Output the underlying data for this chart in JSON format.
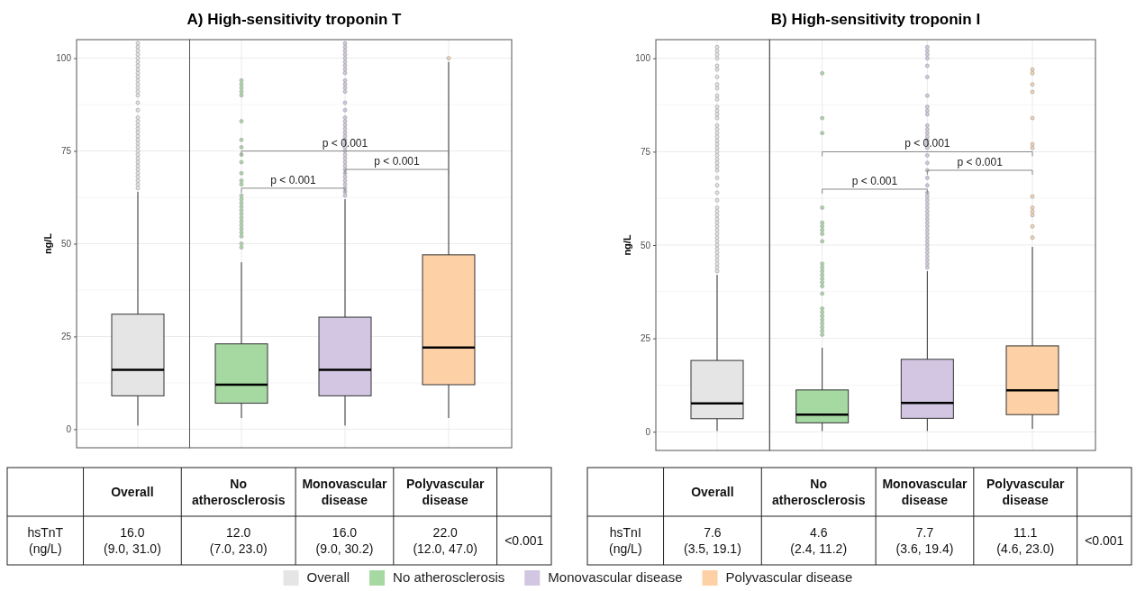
{
  "chart_data": [
    {
      "type": "box",
      "title": "A) High-sensitivity troponin T",
      "ylabel": "ng/L",
      "categories": [
        null,
        null,
        null,
        null
      ],
      "series": [
        {
          "name": "Overall",
          "color": "#e5e5e5",
          "value_labels": [
            "16.0 (9.0, 31.0)",
            null,
            null,
            null
          ],
          "boxes": [
            {
              "low": 1,
              "q1": 9,
              "median": 16,
              "q3": 31,
              "high": 64,
              "outliers": [
                65,
                66,
                67,
                68,
                69,
                70,
                71,
                72,
                73,
                74,
                75,
                76,
                77,
                78,
                79,
                80,
                81,
                82,
                83,
                84,
                86,
                88,
                90,
                91,
                92,
                93,
                94,
                95,
                96,
                97,
                98,
                99,
                100,
                101,
                102,
                103,
                104
              ]
            },
            null,
            null,
            null
          ]
        },
        {
          "name": "No atherosclerosis",
          "color": "#a6d9a2",
          "value_labels": [
            null,
            "12.0 (7.0, 23.0)",
            null,
            null
          ],
          "boxes": [
            null,
            {
              "low": 3,
              "q1": 7,
              "median": 12,
              "q3": 23,
              "high": 45,
              "outliers": [
                49,
                50,
                52,
                53,
                54,
                55,
                56,
                57,
                58,
                59,
                60,
                61,
                62,
                63,
                66,
                67,
                69,
                72,
                74,
                76,
                78,
                83,
                90,
                91,
                92,
                93,
                94
              ]
            },
            null,
            null
          ]
        },
        {
          "name": "Monovascular disease",
          "color": "#d2c6e2",
          "value_labels": [
            null,
            null,
            "16.0 (9.0, 30.2)",
            null
          ],
          "boxes": [
            null,
            null,
            {
              "low": 1,
              "q1": 9,
              "median": 16,
              "q3": 30.2,
              "high": 62,
              "outliers": [
                63,
                64,
                65,
                66,
                67,
                68,
                69,
                70,
                71,
                72,
                73,
                74,
                75,
                76,
                77,
                78,
                79,
                80,
                81,
                82,
                83,
                84,
                86,
                88,
                91,
                92,
                93,
                94,
                96,
                97,
                98,
                99,
                100,
                101,
                102,
                103,
                104
              ]
            },
            null
          ]
        },
        {
          "name": "Polyvascular disease",
          "color": "#fdd0a6",
          "value_labels": [
            null,
            null,
            null,
            "22.0 (12.0, 47.0)"
          ],
          "boxes": [
            null,
            null,
            null,
            {
              "low": 3,
              "q1": 12,
              "median": 22,
              "q3": 47,
              "high": 99,
              "outliers": [
                100
              ]
            }
          ]
        }
      ],
      "annotations": [
        "p < 0.001",
        "p < 0.001",
        "p < 0.001",
        "hsTnT (ng/L)",
        "<0.001"
      ],
      "ylim": [
        -5,
        105
      ],
      "yticks": [
        0,
        25,
        50,
        75,
        100
      ],
      "grid": true,
      "tick_labels": "y",
      "legend": "bottom"
    },
    {
      "type": "box",
      "title": "B) High-sensitivity troponin I",
      "ylabel": "ng/L",
      "categories": [
        null,
        null,
        null,
        null
      ],
      "series": [
        {
          "color": "#e5e5e5",
          "value_labels": [
            "7.6 (3.5, 19.1)",
            null,
            null,
            null
          ],
          "boxes": [
            {
              "low": 0.2,
              "q1": 3.5,
              "median": 7.6,
              "q3": 19.1,
              "high": 42,
              "outliers": [
                43,
                44,
                45,
                46,
                47,
                48,
                49,
                50,
                51,
                52,
                53,
                54,
                55,
                56,
                57,
                58,
                59,
                60,
                62,
                64,
                66,
                68,
                70,
                71,
                72,
                73,
                74,
                75,
                76,
                77,
                78,
                79,
                80,
                81,
                82,
                84,
                85,
                86,
                87,
                89,
                90,
                92,
                93,
                95,
                97,
                98,
                100,
                101,
                102,
                103
              ]
            },
            null,
            null,
            null
          ]
        },
        {
          "color": "#a6d9a2",
          "value_labels": [
            null,
            "4.6 (2.4, 11.2)",
            null,
            null
          ],
          "boxes": [
            null,
            {
              "low": 0.2,
              "q1": 2.4,
              "median": 4.6,
              "q3": 11.2,
              "high": 22.5,
              "outliers": [
                26,
                27,
                28,
                29,
                30,
                31,
                32,
                33,
                37,
                39,
                40,
                41,
                42,
                43,
                44,
                45,
                51,
                53,
                54,
                55,
                56,
                60,
                80,
                84,
                96
              ]
            },
            null,
            null
          ]
        },
        {
          "color": "#d2c6e2",
          "value_labels": [
            null,
            null,
            "7.7 (3.6, 19.4)",
            null
          ],
          "boxes": [
            null,
            null,
            {
              "low": 0.2,
              "q1": 3.6,
              "median": 7.7,
              "q3": 19.4,
              "high": 43,
              "outliers": [
                44,
                45,
                46,
                47,
                48,
                49,
                50,
                51,
                52,
                53,
                54,
                55,
                56,
                57,
                58,
                59,
                60,
                61,
                62,
                63,
                64,
                66,
                68,
                70,
                72,
                74,
                76,
                77,
                78,
                79,
                80,
                81,
                82,
                85,
                86,
                87,
                90,
                95,
                98,
                100,
                101,
                102,
                103
              ]
            },
            null
          ]
        },
        {
          "color": "#fdd0a6",
          "value_labels": [
            null,
            null,
            null,
            "11.1 (4.6, 23.0)"
          ],
          "boxes": [
            null,
            null,
            null,
            {
              "low": 0.8,
              "q1": 4.6,
              "median": 11.1,
              "q3": 23.0,
              "high": 49.5,
              "outliers": [
                52,
                55,
                58,
                59,
                60,
                63,
                76,
                77,
                84,
                91,
                93,
                96,
                97
              ]
            }
          ]
        }
      ],
      "annotations": [
        "p < 0.001",
        "p < 0.001",
        "p < 0.001",
        "hsTnI (ng/L)",
        "<0.001",
        "Overall",
        "No atherosclerosis",
        "Monovascular disease",
        "Polyvascular disease"
      ],
      "ylim": [
        -5,
        105
      ],
      "yticks": [
        0,
        25,
        50,
        75,
        100
      ],
      "grid": true,
      "tick_labels": "y"
    }
  ]
}
